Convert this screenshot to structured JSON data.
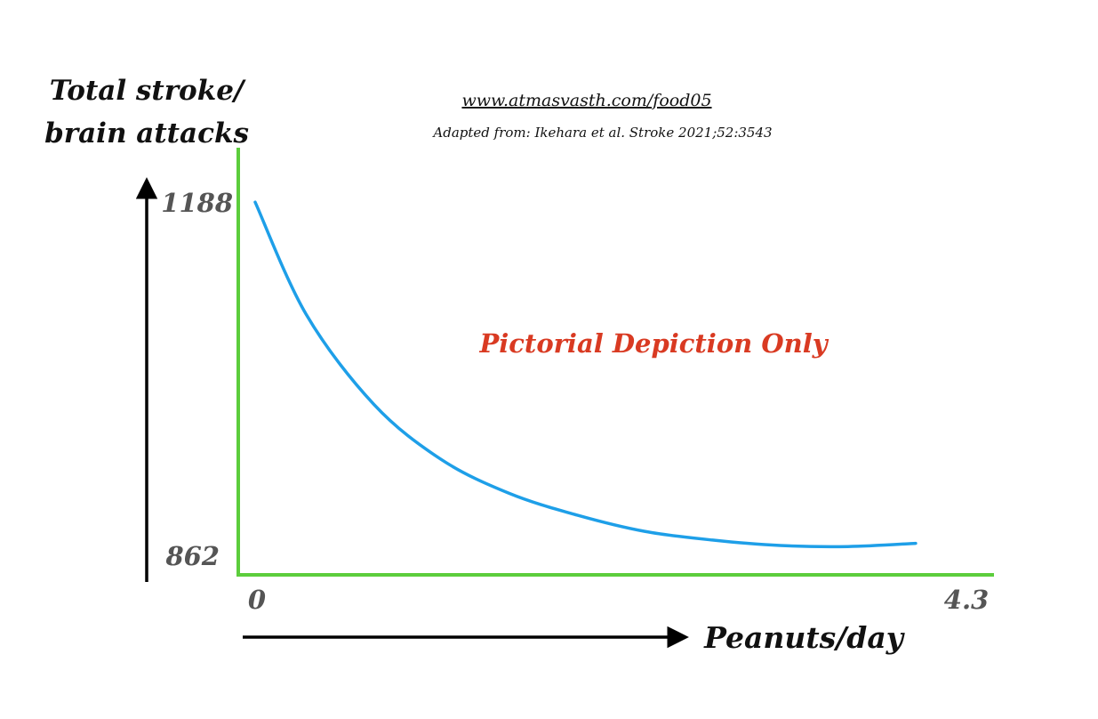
{
  "header": {
    "url": "www.atmasvasth.com/food05",
    "source": "Adapted from: Ikehara et al. Stroke 2021;52:3543"
  },
  "annotation": {
    "text": "Pictorial Depiction Only",
    "color": "#d93a22"
  },
  "colors": {
    "axes": "#5ccd3c",
    "curve": "#1e9fe8",
    "arrows": "#000000"
  },
  "chart_data": {
    "type": "line",
    "title": "",
    "ylabel_lines": [
      "Total stroke/",
      "brain attacks"
    ],
    "xlabel": "Peanuts/day",
    "xlim": [
      0,
      4.3
    ],
    "ylim": [
      862,
      1188
    ],
    "xticks": [
      "0",
      "4.3"
    ],
    "yticks": [
      "862",
      "1188"
    ],
    "grid": false,
    "series": [
      {
        "x": [
          0.1,
          0.4,
          0.8,
          1.2,
          1.6,
          2.0,
          2.4,
          2.8,
          3.2,
          3.6,
          4.0
        ],
        "values": [
          1187,
          1084,
          1001,
          950,
          919,
          899,
          884,
          876,
          871,
          870,
          873
        ]
      }
    ]
  }
}
